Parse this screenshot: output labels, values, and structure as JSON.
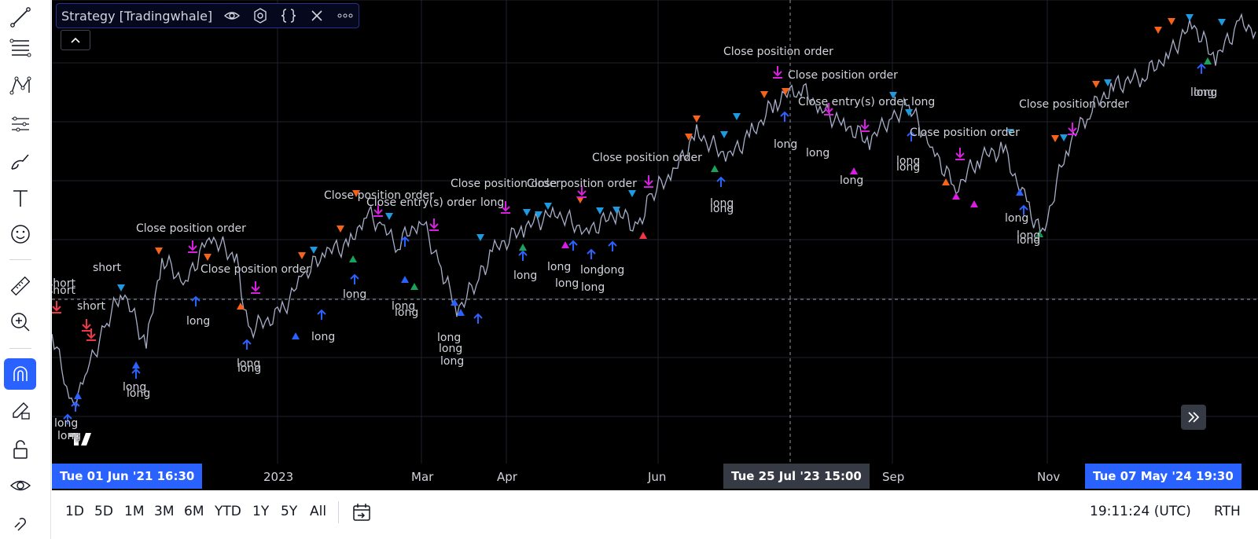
{
  "legend": {
    "title": "Strategy [Tradingwhale]",
    "icons": [
      "eye-icon",
      "settings-icon",
      "source-code-icon",
      "close-icon",
      "more-icon"
    ]
  },
  "left_toolbar": {
    "tools": [
      "trend-line-icon",
      "fib-retracement-icon",
      "pattern-icon",
      "prediction-icon",
      "brush-icon",
      "text-icon",
      "emoji-icon",
      "measure-icon",
      "zoom-in-icon",
      "magnet-icon",
      "stay-in-drawing-mode-icon",
      "lock-icon",
      "hide-drawings-icon",
      "link-icon"
    ],
    "active_tool": "magnet-icon"
  },
  "annotations": {
    "close_position_order": "Close position order",
    "close_entry_order": "Close entry(s) order",
    "long": "long",
    "short": "short",
    "close_entry_order_long": "Close entry(s) order long"
  },
  "time_axis": {
    "ticks": [
      "2023",
      "Mar",
      "Apr",
      "Jun",
      "Sep",
      "Nov"
    ],
    "range_start": "Tue 01 Jun '21   16:30",
    "crosshair": "Tue 25 Jul '23   15:00",
    "range_end": "Tue 07 May '24   19:30"
  },
  "bottom_bar": {
    "ranges": [
      "1D",
      "5D",
      "1M",
      "3M",
      "6M",
      "YTD",
      "1Y",
      "5Y",
      "All"
    ],
    "clock": "19:11:24 (UTC)",
    "session": "RTH"
  },
  "colors": {
    "background": "#000000",
    "accent": "#2962ff",
    "marker_orange": "#f7631b",
    "marker_cyan": "#1e9be0",
    "marker_magenta": "#d81ee0",
    "marker_blue": "#2962ff",
    "marker_green": "#19a35a",
    "marker_red": "#f23645"
  }
}
